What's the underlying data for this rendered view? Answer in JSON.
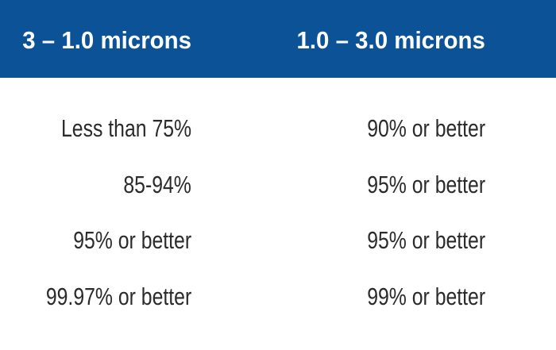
{
  "table": {
    "header": [
      "3 – 1.0 microns",
      "1.0 – 3.0 microns"
    ],
    "rows": [
      [
        "Less than 75%",
        "90% or better"
      ],
      [
        "85-94%",
        "95% or better"
      ],
      [
        "95% or better",
        "95% or better"
      ],
      [
        "99.97% or better",
        "99% or better"
      ]
    ]
  }
}
